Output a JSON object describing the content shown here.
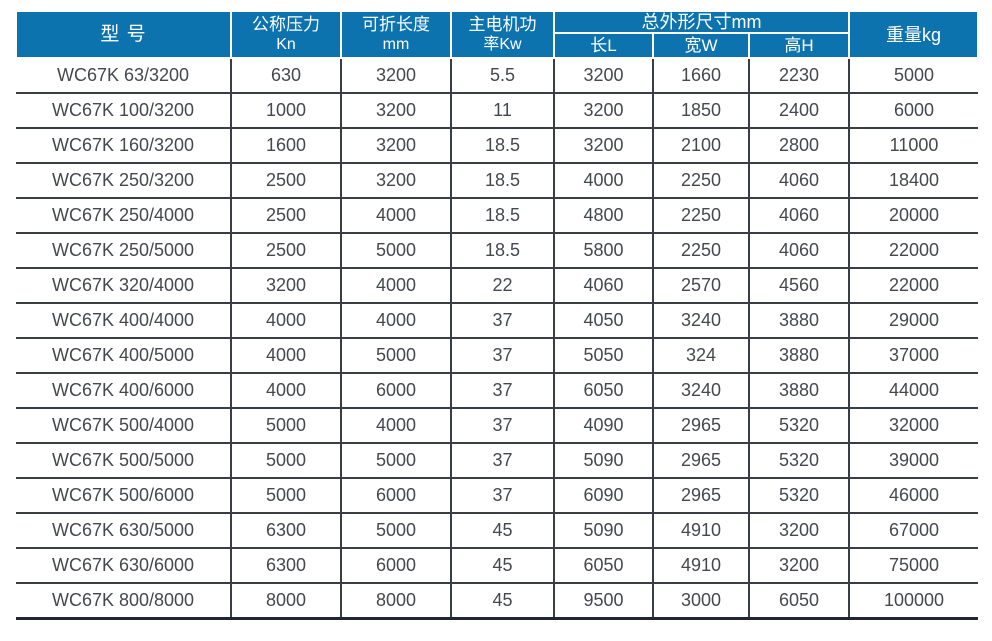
{
  "header": {
    "model": "型 号",
    "pressure_line1": "公称压力",
    "pressure_line2": "Kn",
    "fold_length_line1": "可折长度",
    "fold_length_line2": "mm",
    "motor_power_line1": "主电机功",
    "motor_power_line2": "率Kw",
    "dims_group": "总外形尺寸mm",
    "dim_l": "长L",
    "dim_w": "宽W",
    "dim_h": "高H",
    "weight": "重量kg"
  },
  "colors": {
    "header_bg": "#0d73af",
    "header_text": "#ffffff",
    "body_text": "#45484d",
    "grid_line": "#393d44",
    "bottom_border": "#22262e"
  },
  "chart_data": {
    "type": "table",
    "title": "",
    "columns": [
      "型号",
      "公称压力Kn",
      "可折长度mm",
      "主电机功率Kw",
      "总外形尺寸mm 长L",
      "总外形尺寸mm 宽W",
      "总外形尺寸mm 高H",
      "重量kg"
    ],
    "rows": [
      [
        "WC67K 63/3200",
        "630",
        "3200",
        "5.5",
        "3200",
        "1660",
        "2230",
        "5000"
      ],
      [
        "WC67K 100/3200",
        "1000",
        "3200",
        "11",
        "3200",
        "1850",
        "2400",
        "6000"
      ],
      [
        "WC67K 160/3200",
        "1600",
        "3200",
        "18.5",
        "3200",
        "2100",
        "2800",
        "11000"
      ],
      [
        "WC67K 250/3200",
        "2500",
        "3200",
        "18.5",
        "4000",
        "2250",
        "4060",
        "18400"
      ],
      [
        "WC67K 250/4000",
        "2500",
        "4000",
        "18.5",
        "4800",
        "2250",
        "4060",
        "20000"
      ],
      [
        "WC67K 250/5000",
        "2500",
        "5000",
        "18.5",
        "5800",
        "2250",
        "4060",
        "22000"
      ],
      [
        "WC67K 320/4000",
        "3200",
        "4000",
        "22",
        "4060",
        "2570",
        "4560",
        "22000"
      ],
      [
        "WC67K 400/4000",
        "4000",
        "4000",
        "37",
        "4050",
        "3240",
        "3880",
        "29000"
      ],
      [
        "WC67K 400/5000",
        "4000",
        "5000",
        "37",
        "5050",
        "324",
        "3880",
        "37000"
      ],
      [
        "WC67K 400/6000",
        "4000",
        "6000",
        "37",
        "6050",
        "3240",
        "3880",
        "44000"
      ],
      [
        "WC67K 500/4000",
        "5000",
        "4000",
        "37",
        "4090",
        "2965",
        "5320",
        "32000"
      ],
      [
        "WC67K 500/5000",
        "5000",
        "5000",
        "37",
        "5090",
        "2965",
        "5320",
        "39000"
      ],
      [
        "WC67K 500/6000",
        "5000",
        "6000",
        "37",
        "6090",
        "2965",
        "5320",
        "46000"
      ],
      [
        "WC67K 630/5000",
        "6300",
        "5000",
        "45",
        "5090",
        "4910",
        "3200",
        "67000"
      ],
      [
        "WC67K 630/6000",
        "6300",
        "6000",
        "45",
        "6050",
        "4910",
        "3200",
        "75000"
      ],
      [
        "WC67K 800/8000",
        "8000",
        "8000",
        "45",
        "9500",
        "3000",
        "6050",
        "100000"
      ]
    ]
  }
}
